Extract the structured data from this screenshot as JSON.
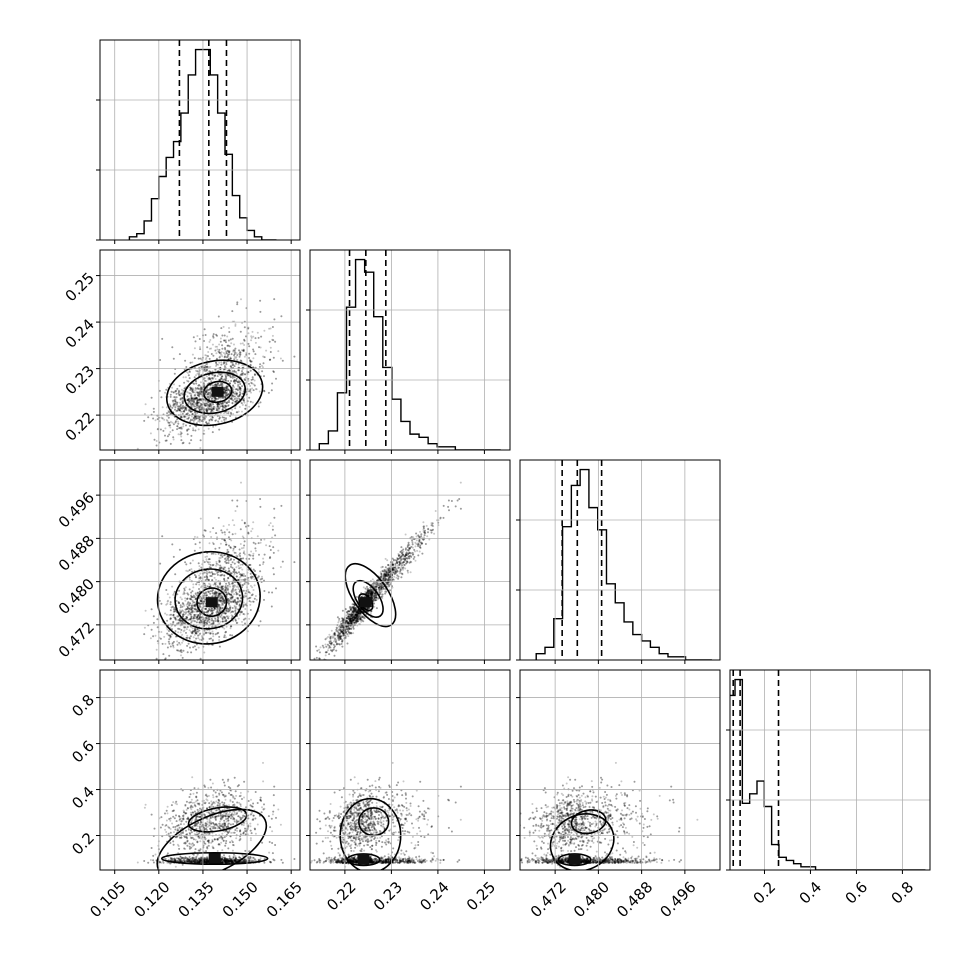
{
  "chart_data": {
    "type": "corner",
    "title": "",
    "parameters": [
      {
        "range": [
          0.1,
          0.168
        ],
        "ticks": [
          0.105,
          0.12,
          0.135,
          0.15,
          0.165
        ],
        "tick_labels": [
          "0.105",
          "0.120",
          "0.135",
          "0.150",
          "0.165"
        ],
        "quantiles": [
          0.127,
          0.137,
          0.143
        ]
      },
      {
        "range": [
          0.2125,
          0.2555
        ],
        "ticks": [
          0.22,
          0.23,
          0.24,
          0.25
        ],
        "tick_labels": [
          "0.22",
          "0.23",
          "0.24",
          "0.25"
        ],
        "quantiles": [
          0.221,
          0.2245,
          0.2288
        ]
      },
      {
        "range": [
          0.4655,
          0.5025
        ],
        "ticks": [
          0.472,
          0.48,
          0.488,
          0.496
        ],
        "tick_labels": [
          "0.472",
          "0.480",
          "0.488",
          "0.496"
        ],
        "quantiles": [
          0.4733,
          0.4761,
          0.4806
        ]
      },
      {
        "range": [
          0.05,
          0.92
        ],
        "ticks": [
          0.2,
          0.4,
          0.6,
          0.8
        ],
        "tick_labels": [
          "0.2",
          "0.4",
          "0.6",
          "0.8"
        ],
        "quantiles": [
          0.064,
          0.094,
          0.261
        ]
      }
    ],
    "histograms": [
      {
        "edges_range": [
          0.11,
          0.16
        ],
        "bins": 20,
        "counts": [
          1,
          2,
          6,
          13,
          20,
          26,
          31,
          40,
          52,
          60,
          60,
          52,
          40,
          27,
          14,
          7,
          3,
          1,
          0,
          0
        ]
      },
      {
        "edges_range": [
          0.2145,
          0.2535
        ],
        "bins": 20,
        "counts": [
          2,
          6,
          18,
          45,
          60,
          56,
          42,
          26,
          16,
          9,
          5,
          4,
          2,
          1,
          1,
          0,
          0,
          0,
          0,
          0
        ]
      },
      {
        "edges_range": [
          0.4685,
          0.501
        ],
        "bins": 20,
        "counts": [
          2,
          4,
          13,
          42,
          55,
          60,
          48,
          41,
          24,
          18,
          12,
          8,
          6,
          4,
          2,
          1,
          1,
          0,
          0,
          0
        ]
      },
      {
        "edges_range": [
          0.04,
          0.9
        ],
        "bins": 27,
        "counts": [
          55,
          60,
          21,
          24,
          28,
          20,
          8,
          4,
          3,
          2,
          1,
          1,
          0,
          0,
          0,
          0,
          0,
          0,
          0,
          0,
          0,
          0,
          0,
          0,
          0,
          0,
          0
        ]
      }
    ]
  }
}
